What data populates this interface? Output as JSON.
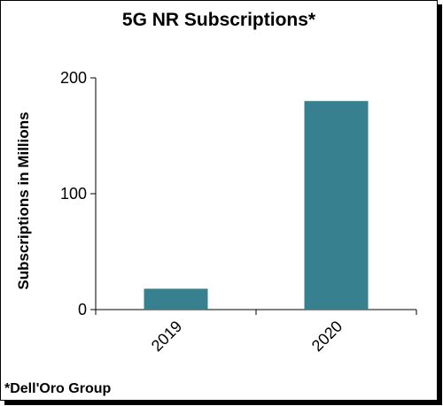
{
  "chart_data": {
    "type": "bar",
    "title": "5G NR Subscriptions*",
    "xlabel": "",
    "ylabel": "Subscriptions in Millions",
    "categories": [
      "2019",
      "2020"
    ],
    "values": [
      18,
      180
    ],
    "ylim": [
      0,
      200
    ],
    "yticks": [
      0,
      100,
      200
    ],
    "bar_color": "#36808f",
    "grid": false,
    "legend": "none",
    "source_note": "*Dell'Oro Group"
  }
}
